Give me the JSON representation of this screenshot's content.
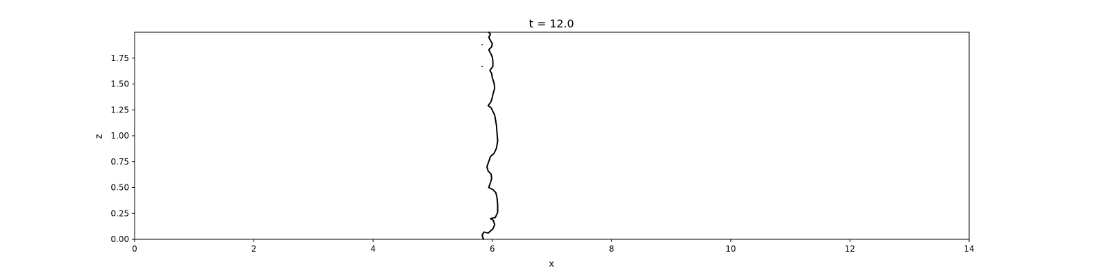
{
  "chart_data": {
    "type": "line",
    "title": "t = 12.0",
    "xlabel": "x",
    "ylabel": "z",
    "xlim": [
      0,
      14
    ],
    "ylim": [
      0,
      2
    ],
    "x_ticks": [
      0,
      2,
      4,
      6,
      8,
      10,
      12,
      14
    ],
    "x_tick_labels": [
      "0",
      "2",
      "4",
      "6",
      "8",
      "10",
      "12",
      "14"
    ],
    "y_ticks": [
      0.0,
      0.25,
      0.5,
      0.75,
      1.0,
      1.25,
      1.5,
      1.75
    ],
    "y_tick_labels": [
      "0.00",
      "0.25",
      "0.50",
      "0.75",
      "1.00",
      "1.25",
      "1.50",
      "1.75"
    ],
    "grid": false,
    "line_color": "#000000",
    "series": [
      {
        "values": [
          [
            5.85,
            0.0
          ],
          [
            5.83,
            0.04
          ],
          [
            5.86,
            0.07
          ],
          [
            5.93,
            0.06
          ],
          [
            6.01,
            0.1
          ],
          [
            6.04,
            0.14
          ],
          [
            6.02,
            0.18
          ],
          [
            5.97,
            0.2
          ],
          [
            6.05,
            0.21
          ],
          [
            6.09,
            0.26
          ],
          [
            6.09,
            0.33
          ],
          [
            6.08,
            0.4
          ],
          [
            6.06,
            0.45
          ],
          [
            6.01,
            0.48
          ],
          [
            5.94,
            0.5
          ],
          [
            5.97,
            0.55
          ],
          [
            5.99,
            0.59
          ],
          [
            5.98,
            0.63
          ],
          [
            5.93,
            0.66
          ],
          [
            5.91,
            0.7
          ],
          [
            5.94,
            0.75
          ],
          [
            5.97,
            0.8
          ],
          [
            6.03,
            0.83
          ],
          [
            6.07,
            0.88
          ],
          [
            6.09,
            0.95
          ],
          [
            6.08,
            1.02
          ],
          [
            6.07,
            1.1
          ],
          [
            6.04,
            1.2
          ],
          [
            5.98,
            1.27
          ],
          [
            5.93,
            1.29
          ],
          [
            5.98,
            1.33
          ],
          [
            6.0,
            1.37
          ],
          [
            6.01,
            1.4
          ],
          [
            6.04,
            1.46
          ],
          [
            6.03,
            1.51
          ],
          [
            6.0,
            1.56
          ],
          [
            5.99,
            1.6
          ],
          [
            5.96,
            1.63
          ],
          [
            6.01,
            1.67
          ],
          [
            6.01,
            1.72
          ],
          [
            6.0,
            1.76
          ],
          [
            5.97,
            1.8
          ],
          [
            5.94,
            1.83
          ],
          [
            5.99,
            1.86
          ],
          [
            6.0,
            1.89
          ],
          [
            5.97,
            1.92
          ],
          [
            5.94,
            1.95
          ],
          [
            5.97,
            1.98
          ],
          [
            5.94,
            2.0
          ]
        ]
      }
    ],
    "points": [
      [
        5.83,
        1.88
      ],
      [
        5.83,
        1.67
      ]
    ]
  }
}
